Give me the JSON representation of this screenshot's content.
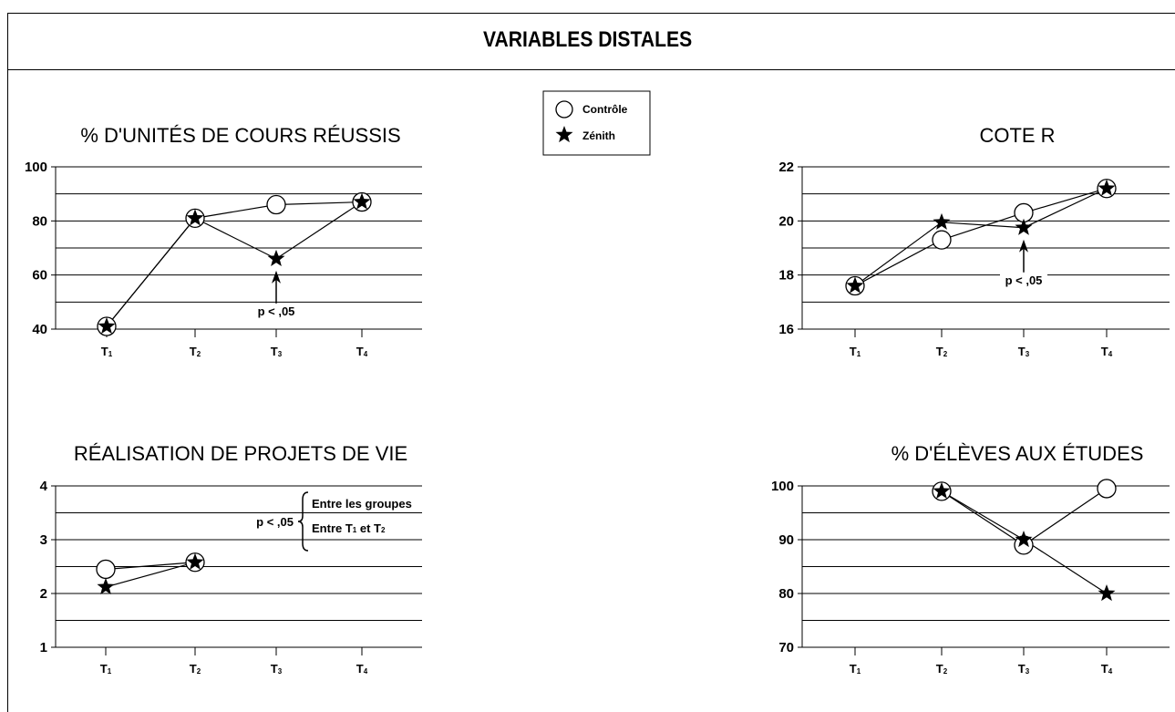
{
  "title": "VARIABLES DISTALES",
  "legend": [
    {
      "label": "Contrôle",
      "marker": "circle"
    },
    {
      "label": "Zénith",
      "marker": "star"
    }
  ],
  "chart_data": [
    {
      "type": "line",
      "title": "% D'UNITÉS DE COURS RÉUSSIS",
      "categories": [
        "T1",
        "T2",
        "T3",
        "T4"
      ],
      "ylim": [
        40,
        100
      ],
      "yticks": [
        40,
        60,
        80,
        100
      ],
      "grid": true,
      "series": [
        {
          "name": "Contrôle",
          "values": [
            41,
            81,
            86,
            87
          ]
        },
        {
          "name": "Zénith",
          "values": [
            41,
            81,
            66,
            87
          ]
        }
      ],
      "annotation": {
        "text": "p < ,05",
        "category": "T3"
      }
    },
    {
      "type": "line",
      "title": "COTE R",
      "categories": [
        "T1",
        "T2",
        "T3",
        "T4"
      ],
      "ylim": [
        16,
        22
      ],
      "yticks": [
        16,
        18,
        20,
        22
      ],
      "grid": true,
      "series": [
        {
          "name": "Contrôle",
          "values": [
            17.6,
            19.3,
            20.3,
            21.2
          ]
        },
        {
          "name": "Zénith",
          "values": [
            17.6,
            19.95,
            19.75,
            21.2
          ]
        }
      ],
      "annotation": {
        "text": "p < ,05",
        "category": "T3"
      }
    },
    {
      "type": "line",
      "title": "RÉALISATION DE PROJETS DE VIE",
      "categories": [
        "T1",
        "T2",
        "T3",
        "T4"
      ],
      "ylim": [
        1,
        4
      ],
      "yticks": [
        1,
        2,
        3,
        4
      ],
      "grid": true,
      "series": [
        {
          "name": "Contrôle",
          "values": [
            2.45,
            2.58,
            null,
            null
          ]
        },
        {
          "name": "Zénith",
          "values": [
            2.12,
            2.58,
            null,
            null
          ]
        }
      ],
      "annotation": {
        "text": "p < ,05",
        "items": [
          "Entre les groupes",
          "Entre T1 et T2"
        ]
      }
    },
    {
      "type": "line",
      "title": "% D'ÉLÈVES AUX ÉTUDES",
      "categories": [
        "T1",
        "T2",
        "T3",
        "T4"
      ],
      "ylim": [
        70,
        100
      ],
      "yticks": [
        70,
        80,
        90,
        100
      ],
      "grid": true,
      "series": [
        {
          "name": "Contrôle",
          "values": [
            null,
            99,
            89,
            99.5
          ]
        },
        {
          "name": "Zénith",
          "values": [
            null,
            99,
            90,
            80
          ]
        }
      ]
    }
  ]
}
